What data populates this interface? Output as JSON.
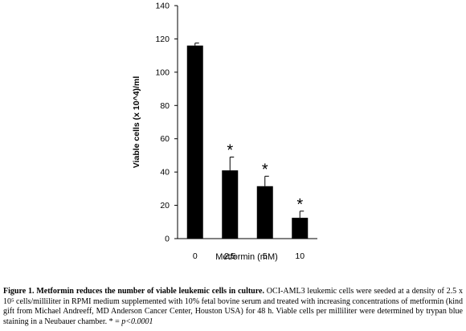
{
  "chart_data": {
    "type": "bar",
    "categories": [
      "0",
      "2,5",
      "5",
      "10"
    ],
    "values": [
      116,
      41,
      31.5,
      12.5
    ],
    "errors": [
      1.5,
      8,
      6,
      4
    ],
    "annotations": [
      "",
      "*",
      "*",
      "*"
    ],
    "xlabel": "Metformin (mM)",
    "ylabel": "Viable cells (x 10^4)/ml",
    "ylim": [
      0,
      140
    ],
    "yticks": [
      0,
      20,
      40,
      60,
      80,
      100,
      120,
      140
    ],
    "grid": false,
    "bar_color": "#000000"
  },
  "caption": {
    "title": "Figure 1. Metformin reduces the number of viable leukemic cells in culture.",
    "body": " OCI-AML3 leukemic cells were seeded at a density of 2.5 x 10⁵ cells/milliliter in RPMI medium supplemented with 10% fetal bovine serum and treated with increasing concentrations of metformin (kind gift from Michael Andreeff, MD Anderson Cancer Center, Houston USA) for 48 h. Viable cells per milliliter were determined by trypan blue staining in a Neubauer chamber. * = ",
    "significance": "p<0.0001"
  }
}
